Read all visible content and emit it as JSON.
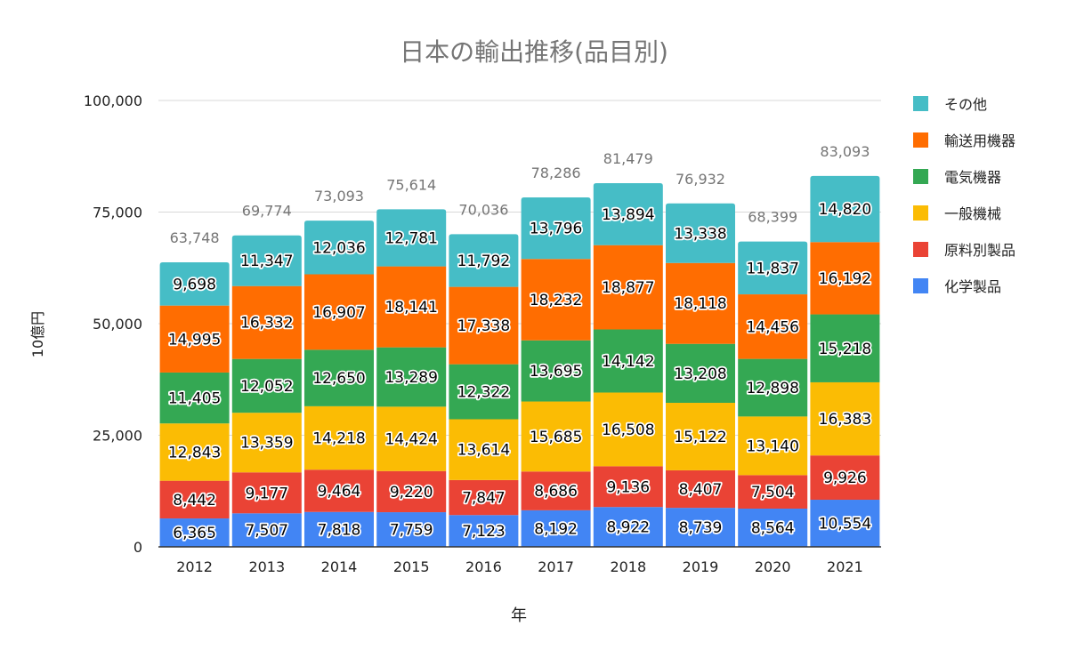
{
  "chart_data": {
    "type": "bar",
    "stacked": true,
    "title": "日本の輸出推移(品目別)",
    "xlabel": "年",
    "ylabel": "10億円",
    "ylim": [
      0,
      100000
    ],
    "yticks": [
      0,
      25000,
      50000,
      75000,
      100000
    ],
    "ytick_labels": [
      "0",
      "25,000",
      "50,000",
      "75,000",
      "100,000"
    ],
    "grid": true,
    "legend_position": "right",
    "categories": [
      "2012",
      "2013",
      "2014",
      "2015",
      "2016",
      "2017",
      "2018",
      "2019",
      "2020",
      "2021"
    ],
    "series": [
      {
        "name": "化学製品",
        "color": "#4285f4",
        "values": [
          6365,
          7507,
          7818,
          7759,
          7123,
          8192,
          8922,
          8739,
          8564,
          10554
        ],
        "labels": [
          "6,365",
          "7,507",
          "7,818",
          "7,759",
          "7,123",
          "8,192",
          "8,922",
          "8,739",
          "8,564",
          "10,554"
        ]
      },
      {
        "name": "原料別製品",
        "color": "#ea4335",
        "values": [
          8442,
          9177,
          9464,
          9220,
          7847,
          8686,
          9136,
          8407,
          7504,
          9926
        ],
        "labels": [
          "8,442",
          "9,177",
          "9,464",
          "9,220",
          "7,847",
          "8,686",
          "9,136",
          "8,407",
          "7,504",
          "9,926"
        ]
      },
      {
        "name": "一般機械",
        "color": "#fbbc04",
        "values": [
          12843,
          13359,
          14218,
          14424,
          13614,
          15685,
          16508,
          15122,
          13140,
          16383
        ],
        "labels": [
          "12,843",
          "13,359",
          "14,218",
          "14,424",
          "13,614",
          "15,685",
          "16,508",
          "15,122",
          "13,140",
          "16,383"
        ]
      },
      {
        "name": "電気機器",
        "color": "#34a853",
        "values": [
          11405,
          12052,
          12650,
          13289,
          12322,
          13695,
          14142,
          13208,
          12898,
          15218
        ],
        "labels": [
          "11,405",
          "12,052",
          "12,650",
          "13,289",
          "12,322",
          "13,695",
          "14,142",
          "13,208",
          "12,898",
          "15,218"
        ]
      },
      {
        "name": "輸送用機器",
        "color": "#ff6d01",
        "values": [
          14995,
          16332,
          16907,
          18141,
          17338,
          18232,
          18877,
          18118,
          14456,
          16192
        ],
        "labels": [
          "14,995",
          "16,332",
          "16,907",
          "18,141",
          "17,338",
          "18,232",
          "18,877",
          "18,118",
          "14,456",
          "16,192"
        ]
      },
      {
        "name": "その他",
        "color": "#46bdc6",
        "values": [
          9698,
          11347,
          12036,
          12781,
          11792,
          13796,
          13894,
          13338,
          11837,
          14820
        ],
        "labels": [
          "9,698",
          "11,347",
          "12,036",
          "12,781",
          "11,792",
          "13,796",
          "13,894",
          "13,338",
          "11,837",
          "14,820"
        ]
      }
    ],
    "totals": [
      63748,
      69774,
      73093,
      75614,
      70036,
      78286,
      81479,
      76932,
      68399,
      83093
    ],
    "total_labels": [
      "63,748",
      "69,774",
      "73,093",
      "75,614",
      "70,036",
      "78,286",
      "81,479",
      "76,932",
      "68,399",
      "83,093"
    ],
    "legend_order": [
      "その他",
      "輸送用機器",
      "電気機器",
      "一般機械",
      "原料別製品",
      "化学製品"
    ]
  }
}
